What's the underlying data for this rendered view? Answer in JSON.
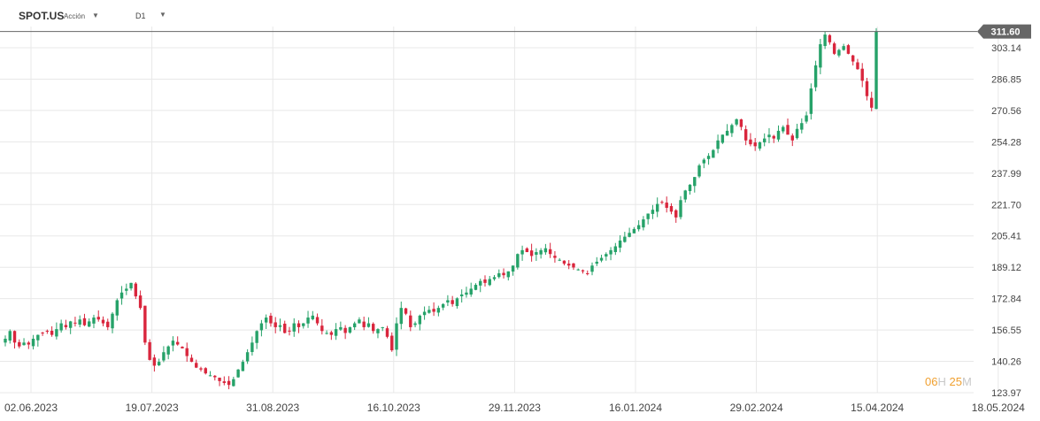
{
  "toolbar": {
    "symbol": "SPOT.US",
    "instrument_type": "Acción",
    "timeframe": "D1"
  },
  "countdown": {
    "hours": "06",
    "hours_unit": "H",
    "minutes": "25",
    "minutes_unit": "M"
  },
  "colors": {
    "up": "#26a269",
    "down": "#d9263d",
    "grid": "#e8e8e8",
    "price_line": "#666666",
    "price_tag": "#666666"
  },
  "chart_data": {
    "type": "candlestick",
    "y_ticks": [
      "123.97",
      "140.26",
      "156.55",
      "172.84",
      "189.12",
      "205.41",
      "221.70",
      "237.99",
      "254.28",
      "270.56",
      "286.85",
      "303.14"
    ],
    "ylim": [
      123.97,
      319.0
    ],
    "x_ticks": [
      "02.06.2023",
      "19.07.2023",
      "31.08.2023",
      "16.10.2023",
      "29.11.2023",
      "16.01.2024",
      "29.02.2024",
      "15.04.2024",
      "18.05.2024"
    ],
    "last_price": "311.60",
    "grid": true,
    "approx_closes": [
      152,
      156,
      150,
      148,
      150,
      149,
      152,
      154,
      155,
      156,
      154,
      157,
      160,
      158,
      161,
      160,
      162,
      159,
      161,
      163,
      162,
      160,
      158,
      165,
      172,
      176,
      178,
      181,
      174,
      168,
      150,
      141,
      138,
      140,
      145,
      148,
      151,
      149,
      147,
      143,
      140,
      137,
      136,
      134,
      133,
      132,
      130,
      129,
      128,
      131,
      136,
      140,
      145,
      150,
      156,
      160,
      163,
      160,
      158,
      159,
      155,
      156,
      160,
      158,
      160,
      163,
      164,
      160,
      156,
      155,
      154,
      157,
      158,
      155,
      158,
      160,
      162,
      158,
      160,
      156,
      157,
      158,
      153,
      146,
      160,
      168,
      165,
      158,
      160,
      164,
      166,
      167,
      166,
      168,
      170,
      172,
      170,
      173,
      175,
      176,
      178,
      180,
      182,
      181,
      183,
      184,
      186,
      185,
      187,
      190,
      196,
      198,
      197,
      195,
      197,
      198,
      199,
      196,
      194,
      193,
      191,
      190,
      189,
      188,
      187,
      186,
      190,
      192,
      194,
      196,
      198,
      200,
      203,
      205,
      207,
      209,
      211,
      214,
      217,
      219,
      222,
      223,
      220,
      218,
      215,
      224,
      229,
      232,
      236,
      242,
      245,
      247,
      250,
      255,
      258,
      260,
      263,
      266,
      262,
      255,
      253,
      252,
      254,
      256,
      258,
      256,
      260,
      262,
      258,
      255,
      261,
      264,
      268,
      282,
      294,
      305,
      310,
      306,
      300,
      302,
      304,
      300,
      296,
      292,
      286,
      278,
      272,
      311.6
    ]
  }
}
